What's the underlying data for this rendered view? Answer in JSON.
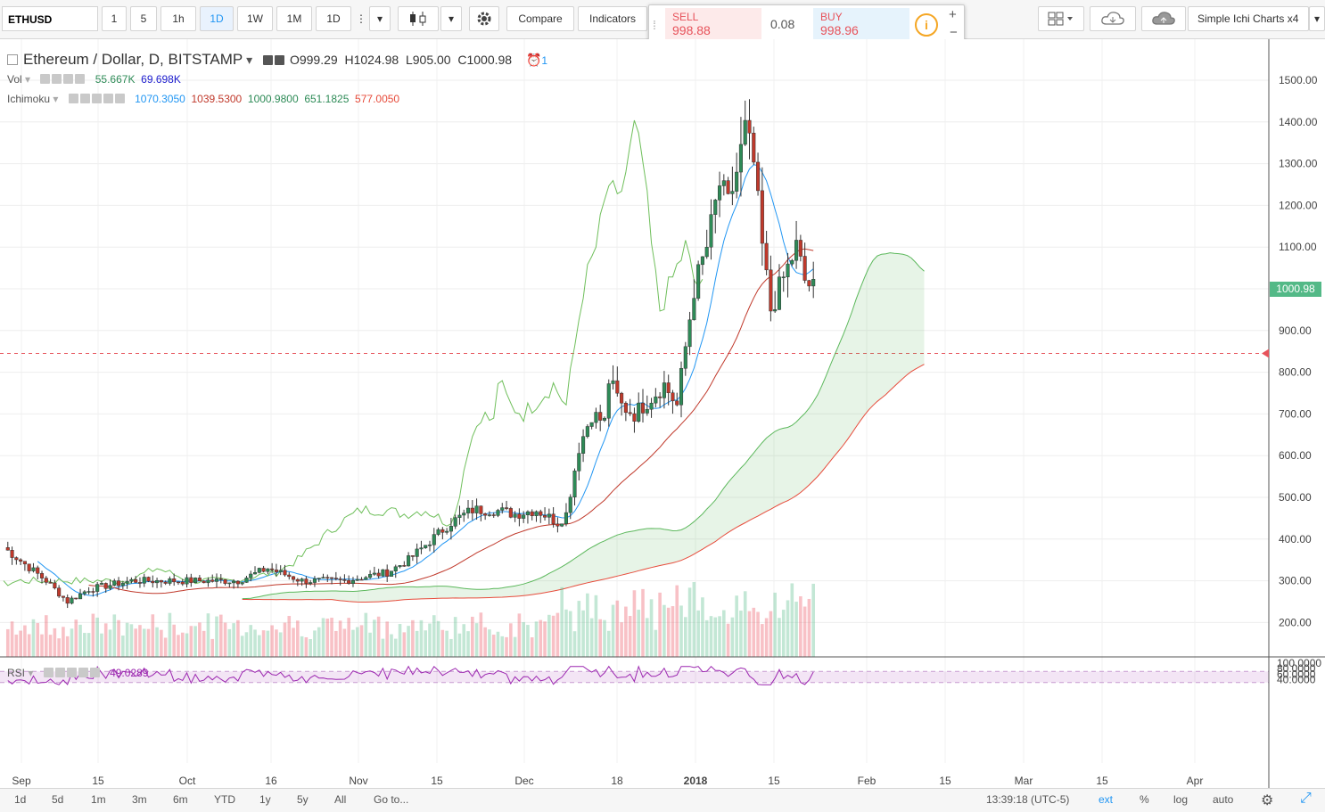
{
  "toolbar": {
    "symbol": "ETHUSD",
    "intervals": [
      "1",
      "5",
      "1h",
      "1D",
      "1W",
      "1M",
      "1D"
    ],
    "active_interval_index": 3,
    "compare_label": "Compare",
    "indicators_label": "Indicators",
    "layout_name": "Simple Ichi Charts x4"
  },
  "trade": {
    "sell_label": "SELL",
    "sell_price": "998.88",
    "spread": "0.08",
    "buy_label": "BUY",
    "buy_price": "998.96"
  },
  "legend": {
    "title": "Ethereum / Dollar, D, BITSTAMP",
    "open": "O999.29",
    "high": "H1024.98",
    "low": "L905.00",
    "close": "C1000.98",
    "alert_count": "1",
    "vol_label": "Vol",
    "vol_value1": "55.667K",
    "vol_value2": "69.698K",
    "ichimoku_label": "Ichimoku",
    "ichimoku_values": [
      "1070.3050",
      "1039.5300",
      "1000.9800",
      "651.1825",
      "577.0050"
    ],
    "rsi_label": "RSI",
    "rsi_value": "49.0289"
  },
  "colors": {
    "up": "#53b987",
    "down": "#eb4d5c",
    "candle_up": "#2e8b57",
    "candle_down": "#c0392b",
    "tenkan": "#2196f3",
    "kijun": "#c0392b",
    "span_a": "#5cb85c",
    "span_b": "#e74c3c",
    "chikou": "#6fbf5b",
    "rsi": "#9c27b0"
  },
  "chart_data": {
    "type": "candlestick",
    "price_axis": [
      "1500.00",
      "1400.00",
      "1300.00",
      "1200.00",
      "1100.00",
      "1000.00",
      "900.00",
      "800.00",
      "700.00",
      "600.00",
      "500.00",
      "400.00",
      "300.00",
      "200.00"
    ],
    "last_price": "1000.98",
    "alert_level": 845,
    "x_labels": [
      "Sep",
      "15",
      "Oct",
      "16",
      "Nov",
      "15",
      "Dec",
      "18",
      "2018",
      "15",
      "Feb",
      "15",
      "Mar",
      "15",
      "Apr"
    ],
    "rsi_axis": [
      "100.0000",
      "80.0000",
      "60.0000",
      "40.0000"
    ],
    "rsi_band": [
      30,
      70
    ]
  },
  "bottom": {
    "ranges": [
      "1d",
      "5d",
      "1m",
      "3m",
      "6m",
      "YTD",
      "1y",
      "5y",
      "All"
    ],
    "goto": "Go to...",
    "time": "13:39:18 (UTC-5)",
    "ext": "ext",
    "percent": "%",
    "log": "log",
    "auto": "auto"
  }
}
